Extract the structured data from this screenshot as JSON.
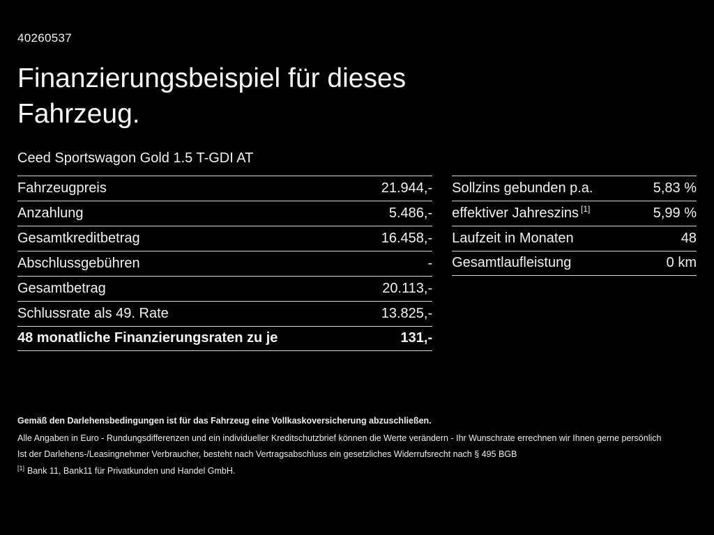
{
  "meta": {
    "doc_id": "40260537"
  },
  "header": {
    "title_line1": "Finanzierungsbeispiel für dieses",
    "title_line2": "Fahrzeug.",
    "vehicle": "Ceed Sportswagon Gold 1.5 T-GDI AT"
  },
  "left_table": {
    "rows": [
      {
        "label": "Fahrzeugpreis",
        "value": "21.944,-"
      },
      {
        "label": "Anzahlung",
        "value": "5.486,-"
      },
      {
        "label": "Gesamtkreditbetrag",
        "value": "16.458,-"
      },
      {
        "label": "Abschlussgebühren",
        "value": "-"
      },
      {
        "label": "Gesamtbetrag",
        "value": "20.113,-"
      },
      {
        "label": "Schlussrate als 49. Rate",
        "value": "13.825,-"
      },
      {
        "label": "48 monatliche Finanzierungsraten zu je",
        "value": "131,-"
      }
    ]
  },
  "right_table": {
    "rows": [
      {
        "label": "Sollzins gebunden p.a.",
        "sup": "",
        "value": "5,83 %"
      },
      {
        "label": "effektiver Jahreszins",
        "sup": "[1]",
        "value": "5,99 %"
      },
      {
        "label": "Laufzeit in Monaten",
        "sup": "",
        "value": "48"
      },
      {
        "label": "Gesamtlaufleistung",
        "sup": "",
        "value": "0 km"
      }
    ]
  },
  "footer": {
    "line_bold": "Gemäß den Darlehensbedingungen ist für das Fahrzeug eine Vollkaskoversicherung abzuschließen.",
    "line2": "Alle Angaben in Euro - Rundungsdifferenzen und ein individueller Kreditschutzbrief können die Werte verändern - Ihr Wunschrate errechnen wir Ihnen gerne persönlich",
    "line3": "Ist der Darlehens-/Leasingnehmer Verbraucher, besteht nach Vertragsabschluss ein gesetzliches Widerrufsrecht nach § 495 BGB",
    "footnote_marker": "[1]",
    "footnote_text": "Bank 11, Bank11 für Privatkunden und Handel GmbH."
  },
  "colors": {
    "background": "#000000",
    "text": "#f2f2f2",
    "divider": "#d9d9d9"
  }
}
